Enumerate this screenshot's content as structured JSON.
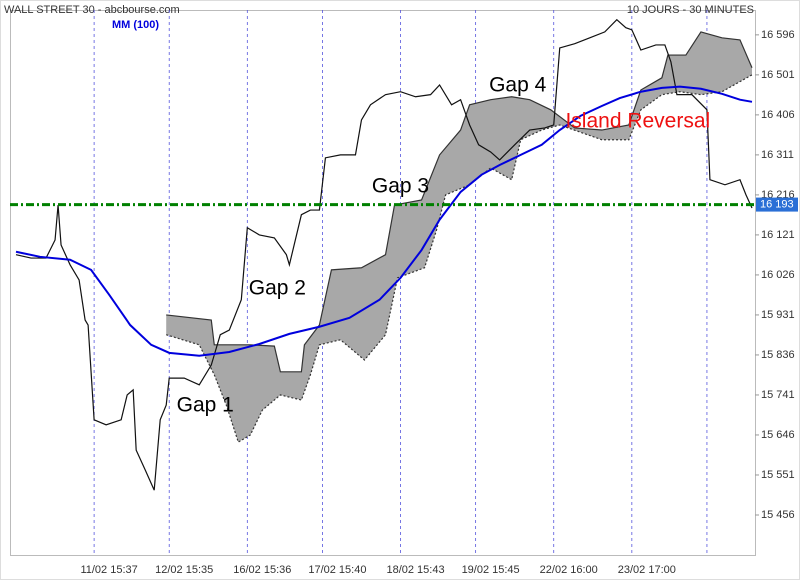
{
  "chart_data": {
    "type": "line",
    "title": "WALL STREET 30 - abcbourse.com",
    "subtitle": "10 JOURS - 30 MINUTES",
    "xlim": [
      0,
      248
    ],
    "ylim": [
      15361,
      16655
    ],
    "xticks": [
      {
        "value": 28,
        "label": "11/02 15:37"
      },
      {
        "value": 53,
        "label": "12/02 15:35"
      },
      {
        "value": 79,
        "label": "16/02 15:36"
      },
      {
        "value": 104,
        "label": "17/02 15:40"
      },
      {
        "value": 130,
        "label": "18/02 15:43"
      },
      {
        "value": 155,
        "label": "19/02 15:45"
      },
      {
        "value": 181,
        "label": "22/02 16:00"
      },
      {
        "value": 207,
        "label": "23/02 17:00"
      },
      {
        "value": 232,
        "label": null
      }
    ],
    "yticks": [
      {
        "value": 15456,
        "label": "15 456"
      },
      {
        "value": 15551,
        "label": "15 551"
      },
      {
        "value": 15646,
        "label": "15 646"
      },
      {
        "value": 15741,
        "label": "15 741"
      },
      {
        "value": 15836,
        "label": "15 836"
      },
      {
        "value": 15931,
        "label": "15 931"
      },
      {
        "value": 16026,
        "label": "16 026"
      },
      {
        "value": 16121,
        "label": "16 121"
      },
      {
        "value": 16216,
        "label": "16 216"
      },
      {
        "value": 16311,
        "label": "16 311"
      },
      {
        "value": 16406,
        "label": "16 406"
      },
      {
        "value": 16501,
        "label": "16 501"
      },
      {
        "value": 16596,
        "label": "16 596"
      }
    ],
    "series": [
      {
        "color": "#111111",
        "x": [
          2,
          7,
          12,
          15,
          16,
          17,
          20,
          23,
          25,
          26,
          28,
          32,
          37,
          39,
          41,
          42,
          45,
          48,
          50,
          52,
          53,
          58,
          63,
          67,
          70,
          73,
          77,
          79,
          83,
          88,
          92,
          93,
          97,
          100,
          103,
          105,
          110,
          115,
          117,
          120,
          125,
          130,
          135,
          140,
          143,
          147,
          150,
          153,
          156,
          160,
          163,
          168,
          173,
          178,
          181,
          183,
          188,
          193,
          198,
          202,
          205,
          207,
          210,
          215,
          218,
          220,
          222,
          227,
          232,
          233,
          238,
          243,
          245,
          247
        ],
        "values": [
          16074,
          16066,
          16066,
          16109,
          16192,
          16097,
          16050,
          16014,
          15919,
          15907,
          15682,
          15670,
          15682,
          15741,
          15753,
          15610,
          15563,
          15515,
          15682,
          15717,
          15781,
          15781,
          15765,
          15812,
          15884,
          15895,
          15967,
          16138,
          16121,
          16114,
          16074,
          16050,
          16169,
          16180,
          16180,
          16304,
          16311,
          16311,
          16394,
          16430,
          16454,
          16461,
          16449,
          16454,
          16477,
          16430,
          16442,
          16382,
          16335,
          16318,
          16299,
          16335,
          16370,
          16375,
          16382,
          16565,
          16575,
          16589,
          16603,
          16632,
          16613,
          16608,
          16560,
          16572,
          16572,
          16532,
          16454,
          16454,
          16418,
          16252,
          16240,
          16252,
          16216,
          16185
        ]
      },
      {
        "name": "MM (100)",
        "color": "#0000dd",
        "x": [
          2,
          10,
          20,
          27,
          33,
          40,
          47,
          53,
          63,
          73,
          83,
          93,
          103,
          113,
          123,
          130,
          137,
          143,
          150,
          157,
          163,
          170,
          177,
          183,
          190,
          197,
          203,
          210,
          217,
          223,
          230,
          237,
          243,
          247
        ],
        "values": [
          16081,
          16069,
          16062,
          16038,
          15979,
          15907,
          15860,
          15841,
          15834,
          15843,
          15862,
          15886,
          15903,
          15924,
          15967,
          16019,
          16085,
          16157,
          16223,
          16264,
          16287,
          16311,
          16335,
          16370,
          16404,
          16427,
          16446,
          16461,
          16470,
          16473,
          16468,
          16456,
          16442,
          16437
        ]
      }
    ],
    "cloud": {
      "color": "#a8a8a8",
      "upper": {
        "x": [
          52,
          67,
          68,
          80,
          88,
          90,
          97,
          98,
          103,
          107,
          117,
          125,
          128,
          137,
          143,
          150,
          153,
          160,
          167,
          173,
          180,
          188,
          197,
          206,
          210,
          217,
          219,
          225,
          230,
          237,
          243,
          247
        ],
        "values": [
          15931,
          15919,
          15860,
          15860,
          15857,
          15796,
          15796,
          15860,
          15907,
          16038,
          16043,
          16074,
          16192,
          16204,
          16311,
          16370,
          16430,
          16442,
          16449,
          16442,
          16418,
          16375,
          16370,
          16382,
          16465,
          16494,
          16548,
          16548,
          16603,
          16589,
          16584,
          16518
        ]
      },
      "lower": {
        "x": [
          52,
          63,
          68,
          72,
          76,
          80,
          84,
          90,
          97,
          100,
          103,
          110,
          118,
          125,
          129,
          138,
          142,
          145,
          153,
          160,
          167,
          170,
          177,
          183,
          197,
          206,
          210,
          217,
          223,
          230,
          237,
          247
        ],
        "values": [
          15884,
          15860,
          15789,
          15717,
          15629,
          15646,
          15705,
          15741,
          15729,
          15789,
          15860,
          15872,
          15824,
          15884,
          16019,
          16043,
          16133,
          16216,
          16240,
          16280,
          16252,
          16347,
          16370,
          16382,
          16347,
          16347,
          16418,
          16454,
          16461,
          16454,
          16461,
          16501
        ]
      }
    },
    "level": {
      "value": 16193,
      "label": "16 193",
      "color": "#008000"
    },
    "annotations": [
      {
        "text": "Gap 1",
        "x": 65,
        "y": 15715,
        "color": "#000000"
      },
      {
        "text": "Gap 2",
        "x": 89,
        "y": 15993,
        "color": "#000000"
      },
      {
        "text": "Gap 3",
        "x": 130,
        "y": 16235,
        "color": "#000000"
      },
      {
        "text": "Gap 4",
        "x": 169,
        "y": 16475,
        "color": "#000000"
      },
      {
        "text": "Island Reversal",
        "x": 209,
        "y": 16389,
        "color": "#ee1111"
      }
    ]
  }
}
